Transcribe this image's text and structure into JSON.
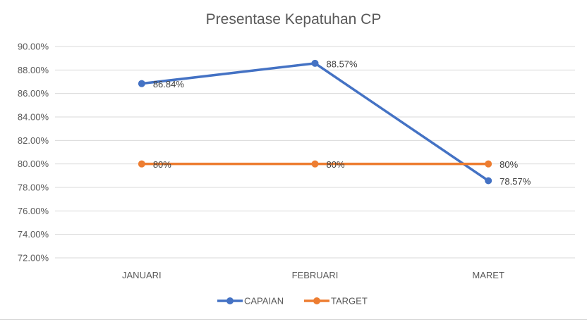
{
  "chart_data": {
    "type": "line",
    "title": "Presentase Kepatuhan CP",
    "xlabel": "",
    "ylabel": "",
    "categories": [
      "JANUARI",
      "FEBRUARI",
      "MARET"
    ],
    "ylim": [
      72,
      90
    ],
    "y_tick_step": 2,
    "y_tick_labels": [
      "72.00%",
      "74.00%",
      "76.00%",
      "78.00%",
      "80.00%",
      "82.00%",
      "84.00%",
      "86.00%",
      "88.00%",
      "90.00%"
    ],
    "grid": true,
    "legend": "bottom",
    "series": [
      {
        "name": "CAPAIAN",
        "color": "#4472C4",
        "values": [
          86.84,
          88.57,
          78.57
        ],
        "data_labels": [
          "86.84%",
          "88.57%",
          "78.57%"
        ]
      },
      {
        "name": "TARGET",
        "color": "#ED7D31",
        "values": [
          80,
          80,
          80
        ],
        "data_labels": [
          "80%",
          "80%",
          "80%"
        ]
      }
    ]
  }
}
